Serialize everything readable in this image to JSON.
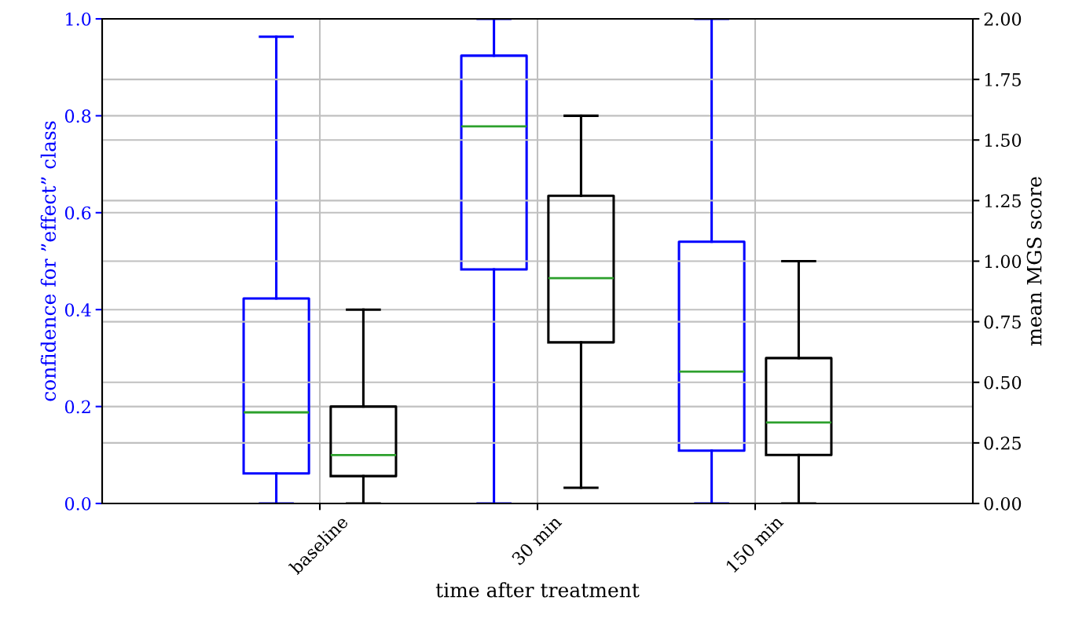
{
  "chart_data": {
    "type": "box",
    "xlabel": "time after treatment",
    "ylabel": "confidence for ”effect” class",
    "y2label": "mean MGS score",
    "categories": [
      "baseline",
      "30 min",
      "150 min"
    ],
    "ylim": [
      0,
      1
    ],
    "yticks": [
      {
        "value": 0,
        "label": "0.0"
      },
      0.2,
      0.4,
      0.6,
      0.8,
      {
        "value": 1,
        "label": "1.0"
      }
    ],
    "y2lim": [
      0,
      2
    ],
    "y2ticks": [
      {
        "value": 0,
        "label": "0.00"
      },
      0.25,
      {
        "value": 0.5,
        "label": "0.50"
      },
      0.75,
      {
        "value": 1,
        "label": "1.00"
      },
      1.25,
      {
        "value": 1.5,
        "label": "1.50"
      },
      1.75,
      {
        "value": 2,
        "label": "2.00"
      }
    ],
    "grid": true,
    "series": [
      {
        "color": "#0000ff",
        "boxes": [
          {
            "low": 0,
            "q1": 0.062,
            "median": 0.188,
            "q3": 0.423,
            "high": 0.963
          },
          {
            "low": 0,
            "q1": 0.483,
            "median": 0.778,
            "q3": 0.924,
            "high": 1.0
          },
          {
            "low": 0,
            "q1": 0.109,
            "median": 0.272,
            "q3": 0.54,
            "high": 1.0
          }
        ]
      },
      {
        "color": "#000000",
        "axis": "y2",
        "boxes": [
          {
            "low": 0,
            "q1": 0.113,
            "median": 0.2,
            "q3": 0.4,
            "high": 0.8
          },
          {
            "low": 0.065,
            "q1": 0.665,
            "median": 0.93,
            "q3": 1.27,
            "high": 1.6
          },
          {
            "low": 0,
            "q1": 0.2,
            "median": 0.334,
            "q3": 0.6,
            "high": 1.0
          }
        ]
      }
    ]
  }
}
